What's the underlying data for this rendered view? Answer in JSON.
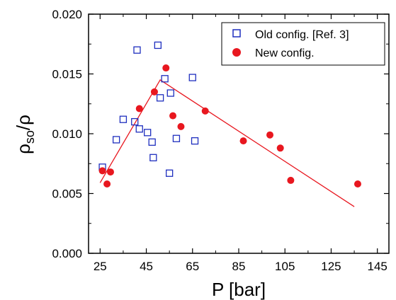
{
  "chart_data": {
    "type": "scatter",
    "title": "",
    "xlabel": "P [bar]",
    "ylabel_parts": {
      "main": "ρ",
      "sub": "so",
      "rest": "/ρ"
    },
    "xlim": [
      20,
      150
    ],
    "ylim": [
      0.0,
      0.02
    ],
    "x_ticks": [
      25,
      45,
      65,
      85,
      105,
      125,
      145
    ],
    "x_tick_labels": [
      "25",
      "45",
      "65",
      "85",
      "105",
      "125",
      "145"
    ],
    "y_ticks": [
      0.0,
      0.005,
      0.01,
      0.015,
      0.02
    ],
    "y_tick_labels": [
      "0.000",
      "0.005",
      "0.010",
      "0.015",
      "0.020"
    ],
    "grid": false,
    "legend_position": "top-right",
    "series": [
      {
        "name": "Old config. [Ref. 3]",
        "marker": "open-square",
        "color": "#1f2fbf",
        "points": [
          {
            "x": 26.0,
            "y": 0.0072
          },
          {
            "x": 32.0,
            "y": 0.0095
          },
          {
            "x": 35.0,
            "y": 0.0112
          },
          {
            "x": 40.0,
            "y": 0.011
          },
          {
            "x": 41.0,
            "y": 0.017
          },
          {
            "x": 42.0,
            "y": 0.0104
          },
          {
            "x": 45.5,
            "y": 0.0101
          },
          {
            "x": 47.5,
            "y": 0.0093
          },
          {
            "x": 48.0,
            "y": 0.008
          },
          {
            "x": 50.0,
            "y": 0.0174
          },
          {
            "x": 51.0,
            "y": 0.013
          },
          {
            "x": 53.0,
            "y": 0.0146
          },
          {
            "x": 55.0,
            "y": 0.0067
          },
          {
            "x": 55.5,
            "y": 0.0134
          },
          {
            "x": 58.0,
            "y": 0.0096
          },
          {
            "x": 65.0,
            "y": 0.0147
          },
          {
            "x": 66.0,
            "y": 0.0094
          }
        ]
      },
      {
        "name": "New config.",
        "marker": "filled-circle",
        "color": "#e8171f",
        "points": [
          {
            "x": 26.0,
            "y": 0.0069
          },
          {
            "x": 28.0,
            "y": 0.0058
          },
          {
            "x": 29.5,
            "y": 0.0068
          },
          {
            "x": 42.0,
            "y": 0.0121
          },
          {
            "x": 48.5,
            "y": 0.0135
          },
          {
            "x": 53.5,
            "y": 0.0155
          },
          {
            "x": 56.5,
            "y": 0.0115
          },
          {
            "x": 60.0,
            "y": 0.0106
          },
          {
            "x": 70.5,
            "y": 0.0119
          },
          {
            "x": 87.0,
            "y": 0.0094
          },
          {
            "x": 98.5,
            "y": 0.0099
          },
          {
            "x": 103.0,
            "y": 0.0088
          },
          {
            "x": 107.5,
            "y": 0.0061
          },
          {
            "x": 136.5,
            "y": 0.0058
          }
        ]
      }
    ],
    "fit_line": {
      "color": "#e8171f",
      "points": [
        {
          "x": 25.0,
          "y": 0.0059
        },
        {
          "x": 51.0,
          "y": 0.0145
        },
        {
          "x": 135.0,
          "y": 0.0039
        }
      ]
    }
  }
}
